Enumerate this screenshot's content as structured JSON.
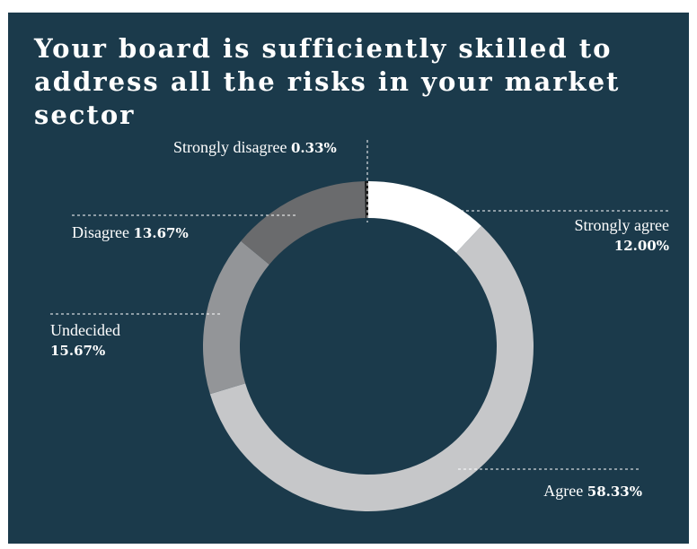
{
  "chart_data": {
    "type": "pie",
    "title": "Your board is sufficiently skilled to address all the risks in your market sector",
    "labels": [
      "Strongly agree",
      "Agree",
      "Undecided",
      "Disagree",
      "Strongly disagree"
    ],
    "values": [
      12.0,
      58.33,
      15.67,
      13.67,
      0.33
    ],
    "value_labels": [
      "12.00%",
      "58.33%",
      "15.67%",
      "13.67%",
      "0.33%"
    ],
    "colors": [
      "#ffffff",
      "#c6c7c9",
      "#939598",
      "#6a6b6d",
      "#1a1a1a"
    ],
    "background": "#1b3a4b",
    "style": "donut"
  }
}
